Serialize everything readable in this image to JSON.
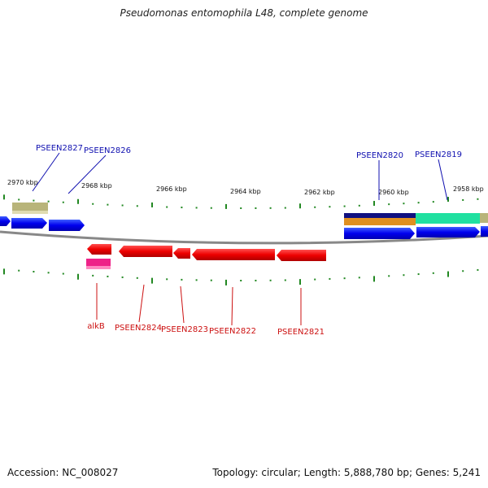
{
  "title": "Pseudomonas entomophila L48, complete genome",
  "footer": {
    "accession": "Accession: NC_008027",
    "summary": "Topology: circular; Length: 5,888,780 bp; Genes: 5,241"
  },
  "ticks": [
    {
      "label": "2970 kbp",
      "kbp": 2970
    },
    {
      "label": "2968 kbp",
      "kbp": 2968
    },
    {
      "label": "2966 kbp",
      "kbp": 2966
    },
    {
      "label": "2964 kbp",
      "kbp": 2964
    },
    {
      "label": "2962 kbp",
      "kbp": 2962
    },
    {
      "label": "2960 kbp",
      "kbp": 2960
    },
    {
      "label": "2958 kbp",
      "kbp": 2958
    }
  ],
  "labels": {
    "pseen2827": "PSEEN2827",
    "pseen2826": "PSEEN2826",
    "pseen2820": "PSEEN2820",
    "pseen2819": "PSEEN2819",
    "alkb": "alkB",
    "pseen2824": "PSEEN2824",
    "pseen2823": "PSEEN2823",
    "pseen2822": "PSEEN2822",
    "pseen2821": "PSEEN2821"
  },
  "colors": {
    "forward_gene": "#0000ee",
    "reverse_gene": "#ee0000",
    "forward_label": "#1010b0",
    "reverse_label": "#cc1010",
    "tick": "#228822",
    "backbone": "#888888",
    "feature_tan": "#b8b47a",
    "feature_navy": "#101080",
    "feature_orange": "#e09020",
    "feature_teal": "#20e0a0",
    "feature_pink": "#ee2288"
  }
}
